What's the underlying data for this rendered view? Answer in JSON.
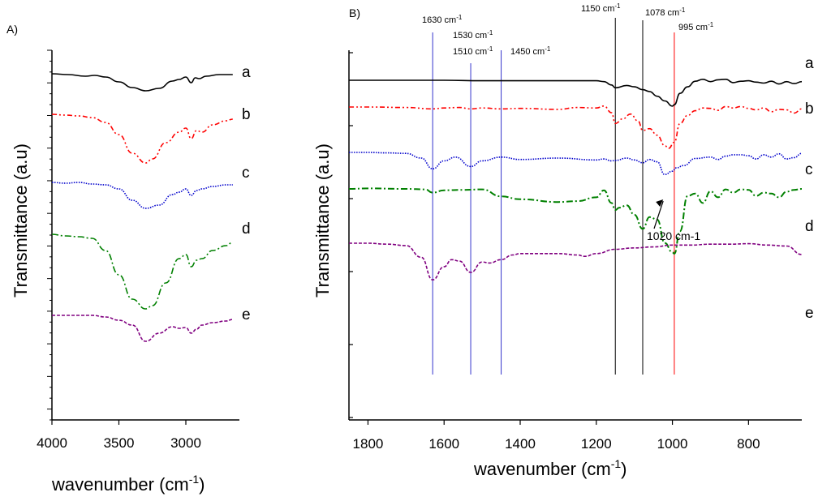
{
  "chart_data": [
    {
      "type": "line",
      "panel": "A)",
      "title": "",
      "xlabel": "wavenumber (cm",
      "xlabel_sup": "-1",
      "xlabel_tail": ")",
      "ylabel": "Transmittance (a.u)",
      "xlim": [
        4000,
        2600
      ],
      "xticks": [
        4000,
        3500,
        3000
      ],
      "tick_labels": [
        "4000",
        "3500",
        "3000"
      ],
      "y_axis_ticks": "unlabeled",
      "series": [
        {
          "name": "a",
          "color": "#000000",
          "dash": "solid",
          "offset": 0,
          "x": [
            4000,
            3880,
            3750,
            3680,
            3600,
            3500,
            3400,
            3300,
            3200,
            3100,
            3050,
            3000,
            2960,
            2930,
            2900,
            2850,
            2750,
            2650
          ],
          "y": [
            0,
            -1,
            -3,
            -2,
            -4,
            -10,
            -17,
            -21,
            -18,
            -9,
            -7,
            -4,
            -11,
            -5,
            -6,
            -3,
            -1,
            -1
          ]
        },
        {
          "name": "b",
          "color": "#ff0000",
          "dash": "6,3,2,3,2,3",
          "offset": 1,
          "x": [
            4000,
            3900,
            3800,
            3700,
            3600,
            3500,
            3400,
            3300,
            3250,
            3150,
            3050,
            3000,
            2960,
            2920,
            2880,
            2800,
            2700,
            2650
          ],
          "y": [
            0,
            -1,
            -2,
            -4,
            -10,
            -25,
            -48,
            -60,
            -55,
            -35,
            -22,
            -17,
            -30,
            -20,
            -22,
            -13,
            -8,
            -6
          ]
        },
        {
          "name": "c",
          "color": "#0000cc",
          "dash": "1.5,1.5",
          "offset": 2,
          "x": [
            4000,
            3900,
            3800,
            3700,
            3600,
            3500,
            3400,
            3300,
            3200,
            3100,
            3050,
            3000,
            2960,
            2920,
            2880,
            2800,
            2700,
            2650
          ],
          "y": [
            0,
            -1,
            0,
            -2,
            -3,
            -8,
            -22,
            -32,
            -28,
            -15,
            -12,
            -8,
            -16,
            -10,
            -8,
            -5,
            -3,
            -3
          ]
        },
        {
          "name": "d",
          "color": "#008000",
          "dash": "8,3,2,3",
          "offset": 3,
          "x": [
            4000,
            3900,
            3800,
            3700,
            3600,
            3500,
            3400,
            3300,
            3250,
            3150,
            3050,
            3000,
            2960,
            2920,
            2880,
            2800,
            2700,
            2650
          ],
          "y": [
            0,
            -2,
            -3,
            -5,
            -20,
            -50,
            -80,
            -92,
            -88,
            -60,
            -30,
            -25,
            -40,
            -32,
            -30,
            -20,
            -14,
            -10
          ]
        },
        {
          "name": "e",
          "color": "#800080",
          "dash": "4,2",
          "offset": 4,
          "x": [
            4000,
            3900,
            3800,
            3700,
            3600,
            3500,
            3400,
            3300,
            3200,
            3100,
            3050,
            3000,
            2960,
            2920,
            2880,
            2800,
            2700,
            2650
          ],
          "y": [
            0,
            0,
            0,
            0,
            -2,
            -6,
            -12,
            -32,
            -22,
            -14,
            -16,
            -15,
            -22,
            -17,
            -12,
            -9,
            -7,
            -5
          ]
        }
      ]
    },
    {
      "type": "line",
      "panel": "B)",
      "title": "",
      "xlabel": "wavenumber (cm",
      "xlabel_sup": "-1",
      "xlabel_tail": ")",
      "ylabel": "Transmittance (a.u)",
      "xlim": [
        1850,
        660
      ],
      "xticks": [
        1800,
        1600,
        1400,
        1200,
        1000,
        800
      ],
      "tick_labels": [
        "1800",
        "1600",
        "1400",
        "1200",
        "1000",
        "800"
      ],
      "y_axis_ticks": "unlabeled",
      "reference_lines": [
        {
          "x": 1630,
          "label": "1630 cm",
          "color": "#3333cc"
        },
        {
          "x": 1530,
          "label": "1530 cm",
          "color": "#3333cc"
        },
        {
          "x": 1450,
          "label": "1450 cm",
          "color": "#3333cc"
        },
        {
          "x": 1150,
          "label": "1150 cm",
          "color": "#000000"
        },
        {
          "x": 1078,
          "label": "1078 cm",
          "color": "#000000"
        },
        {
          "x": 995,
          "label": "995 cm",
          "color": "#ff0000"
        }
      ],
      "extra_label": {
        "label": "1510 cm",
        "near_x": 1510
      },
      "label_unit_sup": "-1",
      "annotation": {
        "text": "1020 cm-1",
        "x": 1020
      },
      "series": [
        {
          "name": "a",
          "color": "#000000",
          "dash": "solid",
          "offset": 0,
          "x": [
            1850,
            1700,
            1600,
            1500,
            1400,
            1300,
            1250,
            1200,
            1180,
            1160,
            1150,
            1120,
            1100,
            1078,
            1060,
            1040,
            1020,
            1000,
            995,
            980,
            960,
            940,
            920,
            900,
            880,
            860,
            840,
            820,
            800,
            780,
            760,
            740,
            720,
            700,
            680,
            660
          ],
          "y": [
            0,
            0,
            0,
            -1,
            -1,
            -1,
            -1,
            -1,
            -3,
            -10,
            -16,
            -11,
            -14,
            -20,
            -24,
            -34,
            -44,
            -55,
            -52,
            -28,
            -14,
            -2,
            2,
            -3,
            1,
            2,
            -5,
            -2,
            -1,
            -4,
            -6,
            -2,
            -8,
            -3,
            -7,
            -3
          ]
        },
        {
          "name": "b",
          "color": "#ff0000",
          "dash": "6,3,2,3,2,3",
          "offset": 1,
          "x": [
            1850,
            1800,
            1700,
            1630,
            1600,
            1560,
            1530,
            1500,
            1450,
            1400,
            1300,
            1250,
            1200,
            1180,
            1160,
            1150,
            1130,
            1110,
            1090,
            1078,
            1060,
            1040,
            1020,
            1010,
            995,
            980,
            960,
            940,
            920,
            900,
            880,
            860,
            840,
            820,
            800,
            780,
            760,
            740,
            720,
            700,
            680,
            660
          ],
          "y": [
            0,
            0,
            -1,
            -4,
            -2,
            -1,
            -4,
            -2,
            -4,
            -3,
            -5,
            -1,
            -2,
            2,
            -12,
            -35,
            -25,
            -15,
            -30,
            -50,
            -46,
            -60,
            -82,
            -88,
            -75,
            -35,
            -18,
            -8,
            -2,
            -3,
            -7,
            1,
            -2,
            1,
            -3,
            -6,
            -2,
            -10,
            -5,
            -6,
            -13,
            -4
          ]
        },
        {
          "name": "c",
          "color": "#0000cc",
          "dash": "1.5,1.5",
          "offset": 2,
          "x": [
            1850,
            1800,
            1750,
            1700,
            1660,
            1630,
            1600,
            1570,
            1530,
            1500,
            1450,
            1400,
            1300,
            1200,
            1180,
            1160,
            1150,
            1120,
            1100,
            1078,
            1060,
            1040,
            1020,
            1000,
            990,
            970,
            940,
            900,
            880,
            860,
            840,
            820,
            800,
            780,
            760,
            740,
            720,
            700,
            680,
            660
          ],
          "y": [
            0,
            0,
            -1,
            -2,
            -12,
            -35,
            -18,
            -10,
            -30,
            -18,
            -10,
            -15,
            -12,
            -16,
            -14,
            -18,
            -17,
            -12,
            -16,
            -22,
            -15,
            -20,
            -47,
            -40,
            -33,
            -28,
            -13,
            -10,
            -15,
            -8,
            -5,
            -5,
            -7,
            -14,
            -5,
            -10,
            -3,
            -14,
            -11,
            -2
          ]
        },
        {
          "name": "d",
          "color": "#008000",
          "dash": "8,3,2,3",
          "offset": 3,
          "x": [
            1850,
            1800,
            1700,
            1650,
            1630,
            1600,
            1550,
            1500,
            1450,
            1400,
            1300,
            1250,
            1200,
            1180,
            1160,
            1150,
            1140,
            1120,
            1100,
            1078,
            1060,
            1040,
            1020,
            1000,
            995,
            980,
            960,
            940,
            920,
            900,
            880,
            860,
            840,
            820,
            800,
            780,
            760,
            740,
            720,
            700,
            680,
            660
          ],
          "y": [
            0,
            1,
            0,
            -1,
            -8,
            -3,
            -2,
            -1,
            -16,
            -22,
            -28,
            -26,
            -18,
            -3,
            -30,
            -45,
            -40,
            -35,
            -55,
            -85,
            -60,
            -65,
            -115,
            -135,
            -138,
            -90,
            -15,
            -10,
            -30,
            -5,
            -18,
            -1,
            -8,
            -1,
            -2,
            -15,
            -8,
            -10,
            -18,
            -6,
            -2,
            0
          ]
        },
        {
          "name": "e",
          "color": "#800080",
          "dash": "4,2",
          "offset": 4,
          "x": [
            1850,
            1800,
            1750,
            1700,
            1660,
            1630,
            1600,
            1580,
            1560,
            1530,
            1500,
            1480,
            1450,
            1420,
            1400,
            1350,
            1300,
            1250,
            1230,
            1200,
            1150,
            1100,
            1050,
            1000,
            950,
            900,
            850,
            800,
            750,
            700,
            660
          ],
          "y": [
            0,
            0,
            -2,
            -5,
            -30,
            -78,
            -50,
            -35,
            -38,
            -62,
            -40,
            -42,
            -35,
            -25,
            -22,
            -22,
            -22,
            -25,
            -28,
            -22,
            -13,
            -10,
            -8,
            -4,
            -4,
            -2,
            -2,
            -1,
            -4,
            -6,
            -24
          ]
        }
      ]
    }
  ]
}
